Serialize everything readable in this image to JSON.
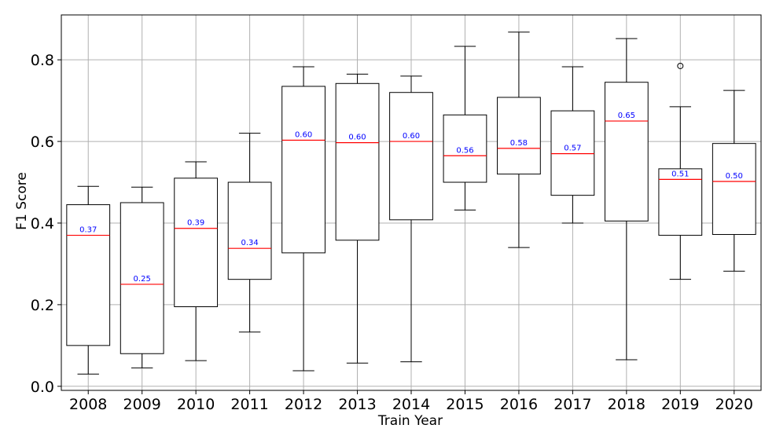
{
  "chart_data": {
    "type": "box",
    "xlabel": "Train Year",
    "ylabel": "F1 Score",
    "ylim": [
      -0.01,
      0.91
    ],
    "yticks": [
      0.0,
      0.2,
      0.4,
      0.6,
      0.8
    ],
    "ytick_labels": [
      "0.0",
      "0.2",
      "0.4",
      "0.6",
      "0.8"
    ],
    "grid": true,
    "colors": {
      "box": "#000000",
      "median": "#ff0000",
      "median_label": "#0000ff",
      "grid": "#b0b0b0",
      "frame": "#000000"
    },
    "boxes": [
      {
        "category": "2008",
        "whisker_low": 0.03,
        "q1": 0.1,
        "median": 0.37,
        "q3": 0.445,
        "whisker_high": 0.49,
        "outliers": [],
        "median_label": "0.37"
      },
      {
        "category": "2009",
        "whisker_low": 0.045,
        "q1": 0.08,
        "median": 0.25,
        "q3": 0.45,
        "whisker_high": 0.488,
        "outliers": [],
        "median_label": "0.25"
      },
      {
        "category": "2010",
        "whisker_low": 0.063,
        "q1": 0.195,
        "median": 0.387,
        "q3": 0.51,
        "whisker_high": 0.55,
        "outliers": [],
        "median_label": "0.39"
      },
      {
        "category": "2011",
        "whisker_low": 0.133,
        "q1": 0.262,
        "median": 0.338,
        "q3": 0.5,
        "whisker_high": 0.62,
        "outliers": [],
        "median_label": "0.34"
      },
      {
        "category": "2012",
        "whisker_low": 0.038,
        "q1": 0.327,
        "median": 0.603,
        "q3": 0.735,
        "whisker_high": 0.783,
        "outliers": [],
        "median_label": "0.60"
      },
      {
        "category": "2013",
        "whisker_low": 0.057,
        "q1": 0.358,
        "median": 0.597,
        "q3": 0.742,
        "whisker_high": 0.765,
        "outliers": [],
        "median_label": "0.60"
      },
      {
        "category": "2014",
        "whisker_low": 0.06,
        "q1": 0.408,
        "median": 0.6,
        "q3": 0.72,
        "whisker_high": 0.76,
        "outliers": [],
        "median_label": "0.60"
      },
      {
        "category": "2015",
        "whisker_low": 0.432,
        "q1": 0.5,
        "median": 0.565,
        "q3": 0.665,
        "whisker_high": 0.833,
        "outliers": [],
        "median_label": "0.56"
      },
      {
        "category": "2016",
        "whisker_low": 0.34,
        "q1": 0.52,
        "median": 0.583,
        "q3": 0.708,
        "whisker_high": 0.868,
        "outliers": [],
        "median_label": "0.58"
      },
      {
        "category": "2017",
        "whisker_low": 0.4,
        "q1": 0.468,
        "median": 0.57,
        "q3": 0.675,
        "whisker_high": 0.783,
        "outliers": [],
        "median_label": "0.57"
      },
      {
        "category": "2018",
        "whisker_low": 0.065,
        "q1": 0.405,
        "median": 0.65,
        "q3": 0.745,
        "whisker_high": 0.852,
        "outliers": [],
        "median_label": "0.65"
      },
      {
        "category": "2019",
        "whisker_low": 0.262,
        "q1": 0.37,
        "median": 0.507,
        "q3": 0.533,
        "whisker_high": 0.685,
        "outliers": [
          0.785
        ],
        "median_label": "0.51"
      },
      {
        "category": "2020",
        "whisker_low": 0.282,
        "q1": 0.372,
        "median": 0.502,
        "q3": 0.595,
        "whisker_high": 0.725,
        "outliers": [],
        "median_label": "0.50"
      }
    ]
  }
}
